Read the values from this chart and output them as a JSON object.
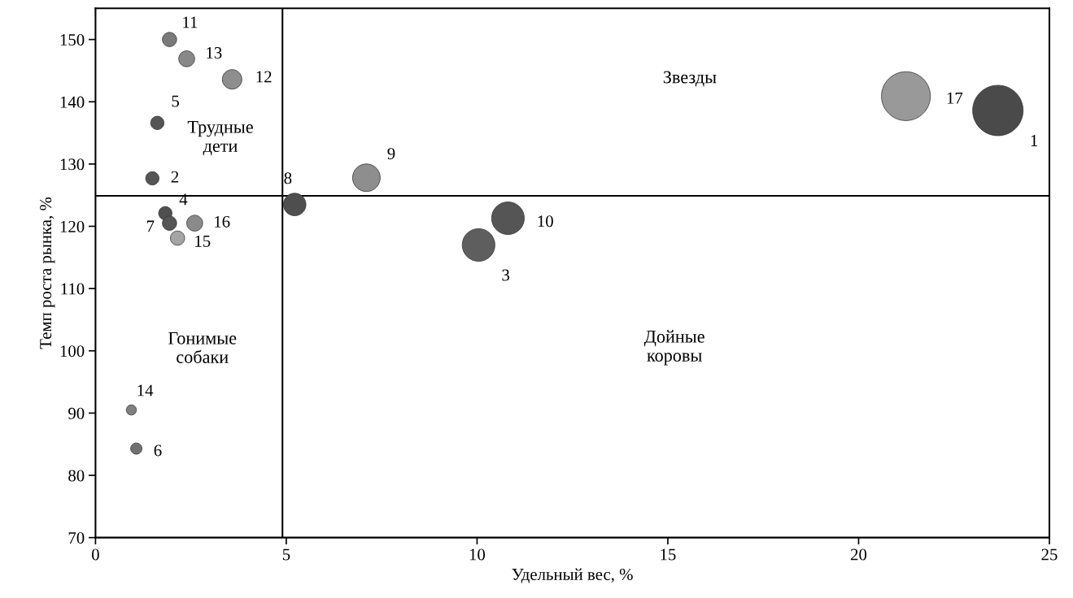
{
  "chart_data": {
    "type": "bubble",
    "xlabel": "Удельный вес, %",
    "ylabel": "Темп роста рынка, %",
    "x": [
      23.65,
      1.49,
      10.04,
      1.83,
      1.62,
      1.07,
      1.94,
      5.22,
      7.1,
      10.81,
      1.94,
      3.58,
      2.39,
      0.94,
      2.15,
      2.6,
      21.24
    ],
    "values": [
      138.6,
      127.7,
      117.0,
      122.1,
      136.6,
      84.3,
      120.5,
      123.5,
      127.8,
      121.3,
      150.0,
      143.6,
      146.9,
      90.5,
      118.1,
      120.5,
      140.9
    ],
    "sizes": [
      1.0,
      0.07,
      0.42,
      0.07,
      0.07,
      0.05,
      0.08,
      0.2,
      0.3,
      0.42,
      0.08,
      0.15,
      0.1,
      0.04,
      0.08,
      0.1,
      0.94
    ],
    "colors": [
      "#4a4a4a",
      "#555555",
      "#5e5e5e",
      "#505050",
      "#555555",
      "#707070",
      "#555555",
      "#4e4e4e",
      "#8e8e8e",
      "#555555",
      "#7a7a7a",
      "#8e8e8e",
      "#888888",
      "#808080",
      "#a5a5a5",
      "#8a8a8a",
      "#999999"
    ],
    "xlim": [
      0,
      25
    ],
    "xticks": [
      0,
      5,
      10,
      15,
      20,
      25
    ],
    "ylim": [
      70,
      155
    ],
    "yticks": [
      70,
      80,
      90,
      100,
      110,
      120,
      130,
      140,
      150
    ],
    "ref_lines": [
      {
        "axis": "x",
        "value": 4.9,
        "color": "#000000"
      },
      {
        "axis": "y",
        "value": 124.9,
        "color": "#000000"
      }
    ],
    "annotations": [
      {
        "text": "1",
        "x": 23.65,
        "y": 138.6
      },
      {
        "text": "2",
        "x": 1.49,
        "y": 127.7
      },
      {
        "text": "3",
        "x": 10.04,
        "y": 117.0
      },
      {
        "text": "4",
        "x": 1.83,
        "y": 122.1
      },
      {
        "text": "5",
        "x": 1.62,
        "y": 136.6
      },
      {
        "text": "6",
        "x": 1.07,
        "y": 84.3
      },
      {
        "text": "7",
        "x": 1.94,
        "y": 120.5
      },
      {
        "text": "8",
        "x": 5.22,
        "y": 123.5
      },
      {
        "text": "9",
        "x": 7.1,
        "y": 127.8
      },
      {
        "text": "10",
        "x": 10.81,
        "y": 121.3
      },
      {
        "text": "11",
        "x": 1.94,
        "y": 150.0
      },
      {
        "text": "12",
        "x": 3.58,
        "y": 143.6
      },
      {
        "text": "13",
        "x": 2.39,
        "y": 146.9
      },
      {
        "text": "14",
        "x": 0.94,
        "y": 90.5
      },
      {
        "text": "15",
        "x": 2.15,
        "y": 118.1
      },
      {
        "text": "16",
        "x": 2.6,
        "y": 120.5
      },
      {
        "text": "17",
        "x": 21.24,
        "y": 140.9
      },
      "Звезды",
      "Трудные\nдети",
      "Гонимые\nсобаки",
      "Дойные\nкоровы"
    ],
    "grid": false,
    "legend": false
  }
}
